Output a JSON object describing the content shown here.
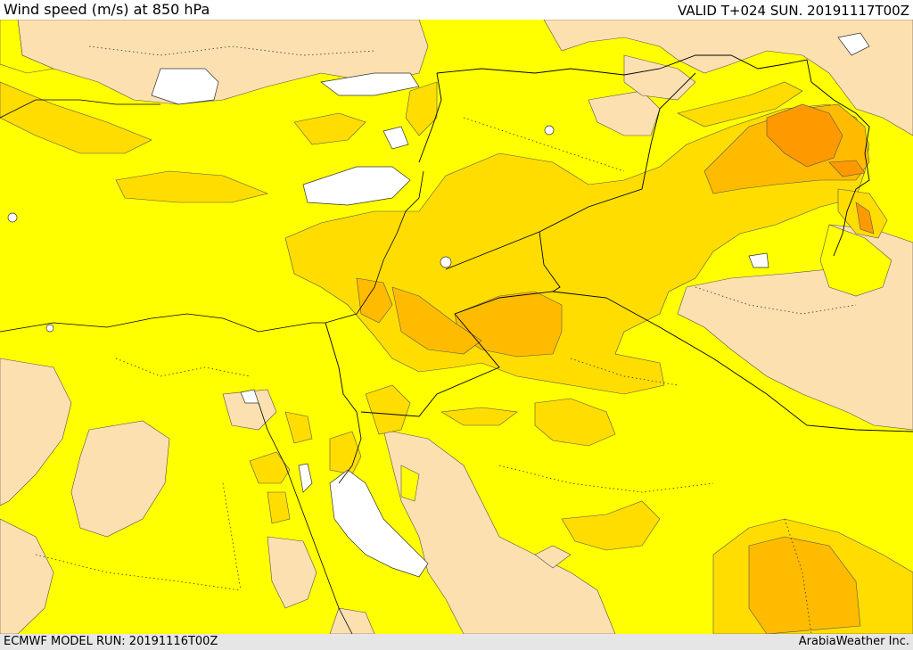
{
  "header": {
    "title": "Wind speed (m/s) at 850 hPa",
    "valid_time": "VALID T+024 SUN. 20191117T00Z"
  },
  "footer": {
    "model_run": "ECMWF MODEL RUN: 20191116T00Z",
    "credit": "ArabiaWeather Inc."
  },
  "map_colors": {
    "water": "#ffffff",
    "level_1": "#fde0b0",
    "level_2": "#ffff00",
    "level_3": "#ffdd00",
    "level_4": "#ffbb00",
    "level_5": "#ff9900"
  }
}
